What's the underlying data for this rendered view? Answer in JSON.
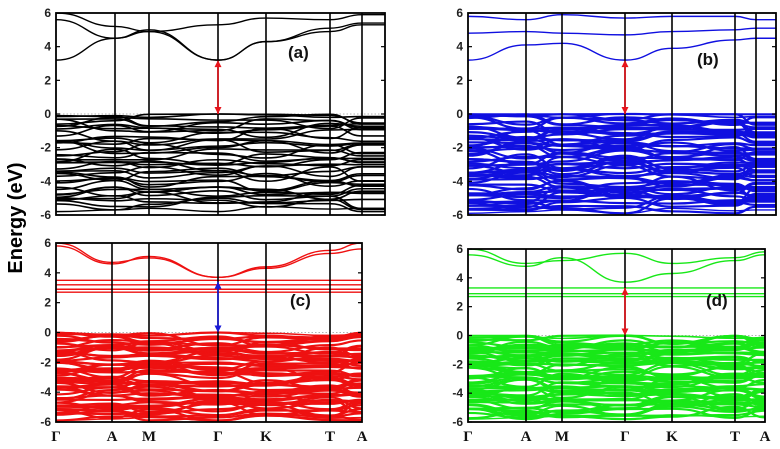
{
  "figure": {
    "ylabel": "Energy (eV)",
    "k_path": [
      "Γ",
      "A",
      "M",
      "Γ",
      "K",
      "T",
      "A"
    ]
  },
  "chart_data": [
    {
      "type": "line",
      "panel_label": "(a)",
      "color": "#000000",
      "ylim": [
        -6,
        6
      ],
      "yticks": [
        6,
        4,
        2,
        0,
        -2,
        -4,
        -6
      ],
      "x": [
        "Γ",
        "A",
        "M",
        "Γ",
        "K",
        "T",
        "A"
      ],
      "fermi_level": 0,
      "cbm": 3.2,
      "vbm": 0,
      "gap_arrow": {
        "from": 0,
        "to": 3.2,
        "at": "Γ",
        "color": "#e8141c"
      },
      "valence_band_range": [
        -5.8,
        0
      ],
      "conduction_bands": [
        {
          "values": [
            3.2,
            4.5,
            4.9,
            3.2,
            4.3,
            4.9,
            5.3
          ]
        },
        {
          "values": [
            5.6,
            4.5,
            5.0,
            3.2,
            4.3,
            5.1,
            5.4
          ]
        },
        {
          "values": [
            6.0,
            5.2,
            4.9,
            5.3,
            5.7,
            5.6,
            5.9
          ]
        }
      ],
      "valence_bands_count": 40
    },
    {
      "type": "line",
      "panel_label": "(b)",
      "color": "#1010e0",
      "ylim": [
        -6,
        6
      ],
      "yticks": [
        6,
        4,
        2,
        0,
        -2,
        -4,
        -6
      ],
      "x": [
        "Γ",
        "A",
        "M",
        "Γ",
        "K",
        "T",
        "A"
      ],
      "fermi_level": 0,
      "cbm": 3.2,
      "vbm": 0,
      "gap_arrow": {
        "from": 0,
        "to": 3.2,
        "at": "Γ",
        "color": "#e8141c"
      },
      "valence_band_range": [
        -5.9,
        0
      ],
      "conduction_bands": [
        {
          "values": [
            3.2,
            4.1,
            4.2,
            3.2,
            3.9,
            4.4,
            4.5
          ]
        },
        {
          "values": [
            4.8,
            4.9,
            4.8,
            4.7,
            4.9,
            5.0,
            5.1
          ]
        },
        {
          "values": [
            5.8,
            5.6,
            5.9,
            5.7,
            5.8,
            5.8,
            5.6
          ]
        }
      ],
      "valence_bands_count": 60
    },
    {
      "type": "line",
      "panel_label": "(c)",
      "color": "#ee1111",
      "ylim": [
        -6,
        6
      ],
      "yticks": [
        6,
        4,
        2,
        0,
        -2,
        -4,
        -6
      ],
      "x": [
        "Γ",
        "A",
        "M",
        "Γ",
        "K",
        "T",
        "A"
      ],
      "fermi_level": 0,
      "cbm": 3.4,
      "vbm": 0,
      "gap_arrow": {
        "from": 3.4,
        "to": 0,
        "at": "Γ",
        "color": "#1a1ad8"
      },
      "valence_band_range": [
        -5.9,
        0
      ],
      "conduction_bands": [
        {
          "values": [
            2.7,
            2.7,
            2.7,
            2.7,
            2.7,
            2.7,
            2.7
          ]
        },
        {
          "values": [
            2.9,
            2.9,
            2.9,
            2.9,
            2.9,
            2.9,
            2.9
          ]
        },
        {
          "values": [
            3.2,
            3.2,
            3.2,
            3.2,
            3.2,
            3.2,
            3.2
          ]
        },
        {
          "values": [
            3.5,
            3.5,
            3.5,
            3.5,
            3.5,
            3.5,
            3.5
          ]
        },
        {
          "values": [
            5.8,
            4.6,
            5.1,
            3.7,
            4.3,
            5.3,
            5.6
          ]
        },
        {
          "values": [
            6.0,
            4.7,
            5.0,
            3.7,
            4.4,
            5.5,
            6.0
          ]
        }
      ],
      "valence_bands_count": 60
    },
    {
      "type": "line",
      "panel_label": "(d)",
      "color": "#18e818",
      "ylim": [
        -6,
        6
      ],
      "yticks": [
        6,
        4,
        2,
        0,
        -2,
        -4,
        -6
      ],
      "x": [
        "Γ",
        "A",
        "M",
        "Γ",
        "K",
        "T",
        "A"
      ],
      "fermi_level": 0,
      "cbm": 3.3,
      "vbm": 0,
      "gap_arrow": {
        "from": 3.3,
        "to": 0,
        "at": "Γ",
        "color": "#e8141c"
      },
      "valence_band_range": [
        -5.8,
        0
      ],
      "conduction_bands": [
        {
          "values": [
            2.7,
            2.7,
            2.7,
            2.7,
            2.7,
            2.7,
            2.7
          ]
        },
        {
          "values": [
            2.9,
            2.9,
            2.9,
            2.9,
            2.9,
            2.9,
            2.9
          ]
        },
        {
          "values": [
            3.3,
            3.3,
            3.3,
            3.3,
            3.3,
            3.3,
            3.3
          ]
        },
        {
          "values": [
            5.6,
            4.8,
            5.4,
            3.7,
            4.3,
            5.2,
            5.6
          ]
        },
        {
          "values": [
            6.0,
            5.0,
            5.2,
            5.7,
            5.0,
            5.4,
            5.8
          ]
        }
      ],
      "valence_bands_count": 60
    }
  ]
}
